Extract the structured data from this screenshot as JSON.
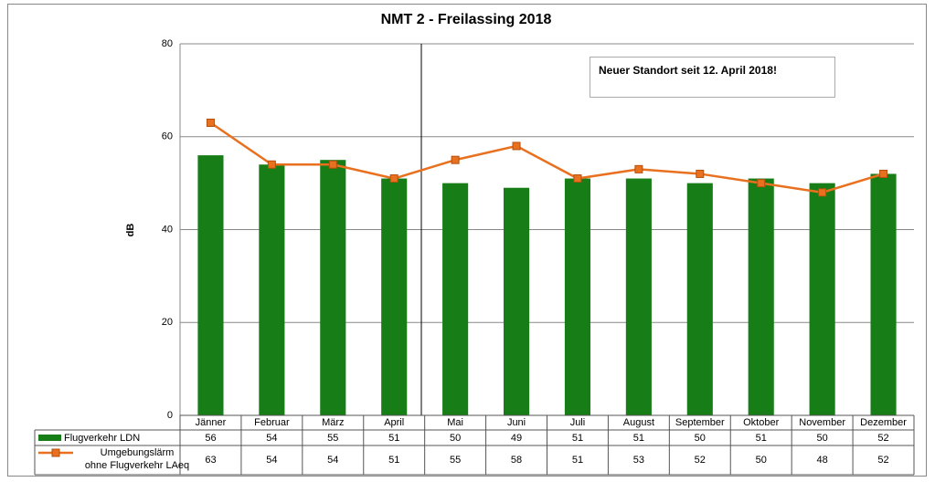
{
  "chart_data": {
    "type": "bar",
    "title": "NMT 2 - Freilassing 2018",
    "y_label": "dB",
    "annotation": "Neuer Standort seit 12. April 2018!",
    "categories": [
      "Jänner",
      "Februar",
      "März",
      "April",
      "Mai",
      "Juni",
      "Juli",
      "August",
      "September",
      "Oktober",
      "November",
      "Dezember"
    ],
    "series": [
      {
        "name": "Flugverkehr LDN",
        "type": "bar",
        "color": "#177d17",
        "values": [
          56,
          54,
          55,
          51,
          50,
          49,
          51,
          51,
          50,
          51,
          50,
          52
        ]
      },
      {
        "name": "Umgebungslärm\nohne Flugverkehr LAeq",
        "type": "line",
        "color": "#e8701e",
        "values": [
          63,
          54,
          54,
          51,
          55,
          58,
          51,
          53,
          52,
          50,
          48,
          52
        ]
      }
    ],
    "ylim": [
      0,
      80
    ],
    "yticks": [
      0,
      20,
      40,
      60,
      80
    ],
    "grid": true
  }
}
